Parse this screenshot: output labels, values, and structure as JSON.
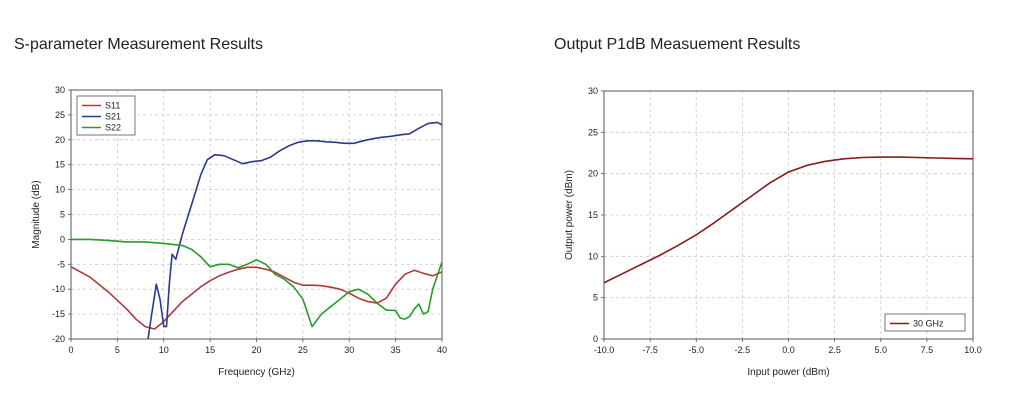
{
  "chart_data": [
    {
      "type": "line",
      "title": "S-parameter Measurement Results",
      "xlabel": "Frequency (GHz)",
      "ylabel": "Magnitude (dB)",
      "xlim": [
        0,
        40
      ],
      "ylim": [
        -20,
        30
      ],
      "xticks": [
        "0",
        "5",
        "10",
        "15",
        "20",
        "25",
        "30",
        "35",
        "40"
      ],
      "yticks": [
        "-20",
        "-15",
        "-10",
        "-5",
        "0",
        "5",
        "10",
        "15",
        "20",
        "25",
        "30"
      ],
      "grid": true,
      "legend": "top-left",
      "series": [
        {
          "name": "S11",
          "color": "#b03a3a",
          "x": [
            0,
            2,
            4,
            6,
            7,
            8,
            9,
            10,
            11,
            12,
            13,
            14,
            15,
            16,
            17,
            18,
            19,
            20,
            21,
            22,
            23,
            24,
            25,
            26,
            27,
            28,
            29,
            30,
            31,
            32,
            33,
            34,
            35,
            36,
            37,
            38,
            39,
            40
          ],
          "values": [
            -5.5,
            -7.5,
            -10.5,
            -14,
            -16,
            -17.5,
            -18,
            -16.5,
            -14.5,
            -12.5,
            -11,
            -9.5,
            -8.3,
            -7.3,
            -6.6,
            -6,
            -5.6,
            -5.6,
            -6,
            -6.6,
            -7.6,
            -8.6,
            -9.2,
            -9.2,
            -9.3,
            -9.6,
            -10,
            -10.8,
            -11.8,
            -12.5,
            -12.8,
            -11.8,
            -9,
            -7,
            -6.2,
            -6.8,
            -7.3,
            -6.5
          ]
        },
        {
          "name": "S21",
          "color": "#2a3a8c",
          "x": [
            8.3,
            8.7,
            9.2,
            9.6,
            10,
            10.3,
            10.6,
            10.9,
            11.3,
            12,
            13,
            14,
            14.7,
            15.5,
            16.5,
            17.5,
            18.5,
            19.5,
            20.5,
            21.5,
            22.5,
            23.5,
            24.5,
            25.5,
            26.5,
            27.5,
            28.5,
            29.5,
            30.5,
            31.5,
            32.5,
            33.5,
            34.5,
            35.5,
            36.5,
            37.5,
            38.5,
            39.5,
            40
          ],
          "values": [
            -20,
            -15,
            -9,
            -12,
            -17.5,
            -17.5,
            -9,
            -3,
            -4,
            1,
            7,
            13,
            16,
            17,
            16.8,
            16,
            15.2,
            15.6,
            15.8,
            16.5,
            17.8,
            18.8,
            19.5,
            19.8,
            19.8,
            19.6,
            19.5,
            19.3,
            19.3,
            19.8,
            20.2,
            20.5,
            20.7,
            21,
            21.2,
            22.3,
            23.3,
            23.5,
            23
          ]
        },
        {
          "name": "S22",
          "color": "#2a9a2a",
          "x": [
            0,
            2,
            4,
            6,
            8,
            10,
            12,
            13,
            14,
            15,
            16,
            17,
            18,
            19,
            20,
            21,
            22,
            23,
            24,
            25,
            26,
            27,
            28,
            29,
            30,
            31,
            32,
            33,
            34,
            35,
            35.5,
            36,
            36.5,
            37,
            37.5,
            38,
            38.5,
            39,
            40
          ],
          "values": [
            0,
            0,
            -0.2,
            -0.5,
            -0.5,
            -0.8,
            -1.2,
            -2,
            -3.5,
            -5.5,
            -5,
            -5,
            -5.7,
            -5,
            -4.1,
            -5,
            -7,
            -8,
            -9.5,
            -12,
            -17.5,
            -15,
            -13.5,
            -12,
            -10.5,
            -10,
            -11,
            -12.8,
            -14.2,
            -14.3,
            -15.8,
            -16,
            -15.5,
            -14,
            -13,
            -15,
            -14.5,
            -10,
            -4.5
          ]
        }
      ]
    },
    {
      "type": "line",
      "title": "Output P1dB Measuement Results",
      "xlabel": "Input power (dBm)",
      "ylabel": "Output power (dBm)",
      "xlim": [
        -10,
        10
      ],
      "ylim": [
        0,
        30
      ],
      "xticks": [
        "-10.0",
        "-7.5",
        "-5.0",
        "-2.5",
        "0.0",
        "2.5",
        "5.0",
        "7.5",
        "10.0"
      ],
      "yticks": [
        "0",
        "5",
        "10",
        "15",
        "20",
        "25",
        "30"
      ],
      "grid": true,
      "legend": "bottom-right",
      "series": [
        {
          "name": "30 GHz",
          "color": "#8b1a1a",
          "x": [
            -10,
            -9,
            -8,
            -7,
            -6,
            -5,
            -4,
            -3,
            -2,
            -1,
            0,
            1,
            2,
            3,
            4,
            5,
            6,
            7,
            8,
            9,
            10
          ],
          "values": [
            6.8,
            7.9,
            9,
            10.1,
            11.3,
            12.6,
            14.1,
            15.7,
            17.3,
            18.9,
            20.2,
            21,
            21.5,
            21.8,
            21.95,
            22,
            22,
            21.95,
            21.9,
            21.85,
            21.8
          ]
        }
      ]
    }
  ]
}
